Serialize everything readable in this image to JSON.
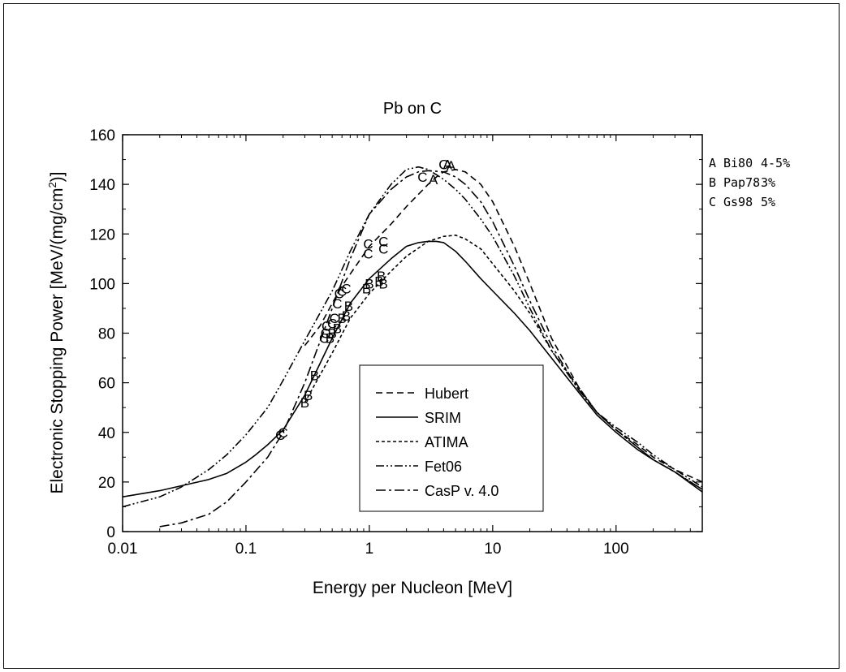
{
  "chart_data": {
    "type": "line",
    "title": "Pb on C",
    "xlabel": "Energy per Nucleon [MeV]",
    "ylabel_main": "Electronic Stopping Power [MeV/(mg/cm",
    "ylabel_sup": "2",
    "ylabel_end": ")]",
    "xscale": "log",
    "xlim": [
      0.01,
      500
    ],
    "ylim": [
      0,
      160
    ],
    "x_ticks": [
      {
        "value": 0.01,
        "label": "0.01"
      },
      {
        "value": 0.1,
        "label": "0.1"
      },
      {
        "value": 1,
        "label": "1"
      },
      {
        "value": 10,
        "label": "10"
      },
      {
        "value": 100,
        "label": "100"
      }
    ],
    "y_ticks": [
      {
        "value": 0,
        "label": "0"
      },
      {
        "value": 20,
        "label": "20"
      },
      {
        "value": 40,
        "label": "40"
      },
      {
        "value": 60,
        "label": "60"
      },
      {
        "value": 80,
        "label": "80"
      },
      {
        "value": 100,
        "label": "100"
      },
      {
        "value": 120,
        "label": "120"
      },
      {
        "value": 140,
        "label": "140"
      },
      {
        "value": 160,
        "label": "160"
      }
    ],
    "series": [
      {
        "name": "Hubert",
        "dash": "8,5",
        "x": [
          0.3,
          0.4,
          0.5,
          0.6,
          0.8,
          1.0,
          1.5,
          2.0,
          2.5,
          3.0,
          3.5,
          4.0,
          5.0,
          6.0,
          8.0,
          10,
          15,
          20,
          30,
          50,
          70,
          100,
          150,
          200,
          300,
          500
        ],
        "y": [
          75,
          83,
          92,
          99,
          108,
          115,
          124,
          131,
          136,
          140,
          143,
          145,
          146,
          145,
          140,
          133,
          115,
          100,
          78,
          58,
          48,
          41,
          35,
          30,
          25,
          20
        ]
      },
      {
        "name": "SRIM",
        "dash": "none",
        "x": [
          0.01,
          0.02,
          0.03,
          0.05,
          0.07,
          0.1,
          0.12,
          0.15,
          0.2,
          0.3,
          0.5,
          0.7,
          1.0,
          1.5,
          2.0,
          2.5,
          3.0,
          3.5,
          4.0,
          5.0,
          6.0,
          8.0,
          10,
          15,
          20,
          30,
          50,
          70,
          100,
          150,
          200,
          300,
          500
        ],
        "y": [
          14,
          16.5,
          18.5,
          21,
          23.5,
          28,
          31,
          35,
          41,
          55,
          78,
          92,
          102,
          110,
          115,
          116.5,
          117,
          117,
          116.5,
          113,
          109,
          102,
          97,
          88,
          81,
          70,
          56,
          47,
          40,
          33,
          29,
          24,
          16
        ]
      },
      {
        "name": "ATIMA",
        "dash": "4,3",
        "x": [
          0.3,
          0.5,
          0.7,
          1.0,
          1.5,
          2.0,
          3.0,
          4.0,
          5.0,
          6.0,
          8.0,
          10,
          15,
          20,
          30,
          50,
          70,
          100,
          150,
          200,
          300,
          500
        ],
        "y": [
          52,
          72,
          86,
          96,
          105,
          111,
          117,
          119,
          119.5,
          118,
          114,
          108,
          97,
          88,
          73,
          58,
          48,
          41,
          34,
          29,
          24,
          17
        ]
      },
      {
        "name": "Fet06",
        "dash": "10,3,2,3,2,3",
        "x": [
          0.01,
          0.02,
          0.03,
          0.05,
          0.07,
          0.1,
          0.15,
          0.2,
          0.3,
          0.5,
          0.7,
          1.0,
          1.5,
          2.0,
          2.5,
          3.0,
          4.0,
          5.0,
          6.0,
          8.0,
          10,
          15,
          20,
          30,
          50,
          70,
          100,
          150,
          200,
          300,
          500
        ],
        "y": [
          10,
          14,
          18,
          25,
          31,
          39,
          50,
          61,
          77,
          97,
          113,
          128,
          140,
          146,
          147,
          146,
          142,
          138,
          134,
          126,
          119,
          103,
          90,
          73,
          57,
          48,
          42,
          36,
          31,
          25,
          18
        ]
      },
      {
        "name": "CasP v. 4.0",
        "dash": "12,4,3,4",
        "x": [
          0.02,
          0.03,
          0.05,
          0.07,
          0.1,
          0.15,
          0.2,
          0.3,
          0.5,
          0.7,
          1.0,
          1.5,
          2.0,
          2.5,
          3.0,
          4.0,
          5.0,
          6.0,
          8.0,
          10,
          15,
          20,
          30,
          50,
          70,
          100,
          150,
          200,
          300,
          500
        ],
        "y": [
          2,
          3.5,
          7,
          12,
          20,
          30,
          40,
          60,
          90,
          110,
          128,
          138,
          143,
          145,
          145.5,
          145,
          143,
          140,
          133,
          125,
          107,
          93,
          75,
          57,
          48,
          41,
          34,
          29,
          24,
          17
        ]
      }
    ],
    "markers": [
      {
        "label": "A",
        "x": 3.3,
        "y": 142
      },
      {
        "label": "A",
        "x": 4.3,
        "y": 148
      },
      {
        "label": "A",
        "x": 4.6,
        "y": 147.5
      },
      {
        "label": "C",
        "x": 2.7,
        "y": 143
      },
      {
        "label": "C",
        "x": 4.0,
        "y": 148
      },
      {
        "label": "C",
        "x": 0.98,
        "y": 112
      },
      {
        "label": "C",
        "x": 0.98,
        "y": 116
      },
      {
        "label": "C",
        "x": 1.3,
        "y": 114
      },
      {
        "label": "C",
        "x": 1.3,
        "y": 117
      },
      {
        "label": "C",
        "x": 0.19,
        "y": 39
      },
      {
        "label": "C",
        "x": 0.2,
        "y": 40
      },
      {
        "label": "C",
        "x": 0.43,
        "y": 78
      },
      {
        "label": "C",
        "x": 0.44,
        "y": 80
      },
      {
        "label": "C",
        "x": 0.45,
        "y": 83
      },
      {
        "label": "C",
        "x": 0.5,
        "y": 84
      },
      {
        "label": "C",
        "x": 0.52,
        "y": 86
      },
      {
        "label": "C",
        "x": 0.55,
        "y": 92
      },
      {
        "label": "C",
        "x": 0.57,
        "y": 96
      },
      {
        "label": "C",
        "x": 0.6,
        "y": 97
      },
      {
        "label": "C",
        "x": 0.65,
        "y": 98
      },
      {
        "label": "B",
        "x": 0.3,
        "y": 52
      },
      {
        "label": "B",
        "x": 0.32,
        "y": 55
      },
      {
        "label": "B",
        "x": 0.36,
        "y": 63
      },
      {
        "label": "B",
        "x": 0.48,
        "y": 78
      },
      {
        "label": "B",
        "x": 0.5,
        "y": 80
      },
      {
        "label": "B",
        "x": 0.55,
        "y": 82
      },
      {
        "label": "B",
        "x": 0.6,
        "y": 86
      },
      {
        "label": "B",
        "x": 0.65,
        "y": 87
      },
      {
        "label": "B",
        "x": 0.68,
        "y": 91
      },
      {
        "label": "B",
        "x": 0.95,
        "y": 98
      },
      {
        "label": "B",
        "x": 1.0,
        "y": 100
      },
      {
        "label": "B",
        "x": 1.2,
        "y": 101
      },
      {
        "label": "B",
        "x": 1.25,
        "y": 103
      },
      {
        "label": "B",
        "x": 1.3,
        "y": 100
      }
    ],
    "references": [
      {
        "code": "A",
        "name": "Bi80",
        "uncertainty": "4-5%"
      },
      {
        "code": "B",
        "name": "Pap78",
        "uncertainty": "3%"
      },
      {
        "code": "C",
        "name": "Gs98",
        "uncertainty": "5%"
      }
    ],
    "legend_position": "center-right inside plot"
  }
}
